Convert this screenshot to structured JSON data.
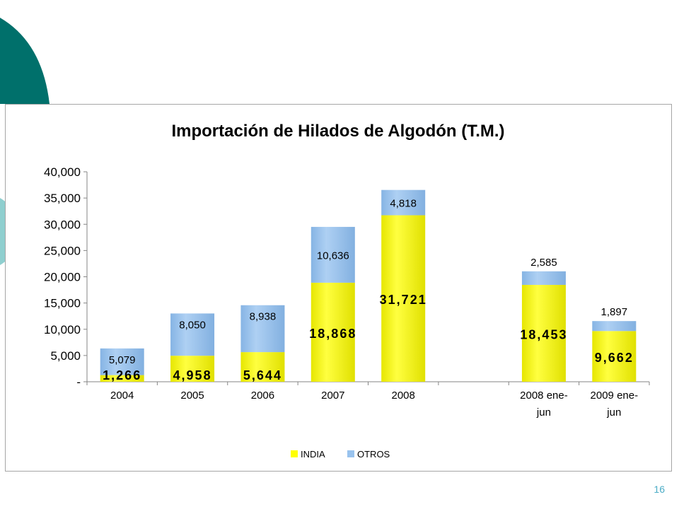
{
  "slide": {
    "page_number": "16",
    "colors": {
      "decor_dark": "#00706b",
      "decor_light": "#8fcfcf",
      "page_number": "#4bacc6"
    }
  },
  "chart_data": {
    "type": "bar",
    "stacked": true,
    "title": "Importación de Hilados de Algodón (T.M.)",
    "xlabel": "",
    "ylabel": "",
    "ylim": [
      0,
      40000
    ],
    "yticks": [
      "-",
      "5,000",
      "10,000",
      "15,000",
      "20,000",
      "25,000",
      "30,000",
      "35,000",
      "40,000"
    ],
    "grid": false,
    "legend_position": "bottom",
    "categories": [
      [
        "2004"
      ],
      [
        "2005"
      ],
      [
        "2006"
      ],
      [
        "2007"
      ],
      [
        "2008"
      ],
      [
        ""
      ],
      [
        "2008 ene-",
        "jun"
      ],
      [
        "2009 ene-",
        "jun"
      ]
    ],
    "series": [
      {
        "name": "INDIA",
        "color": "#ffff00",
        "values": [
          1266,
          4958,
          5644,
          18868,
          31721,
          null,
          18453,
          9662
        ],
        "labels": [
          "1,266",
          "4,958",
          "5,644",
          "18,868",
          "31,721",
          "",
          "18,453",
          "9,662"
        ]
      },
      {
        "name": "OTROS",
        "color": "#99c3ee",
        "values": [
          5079,
          8050,
          8938,
          10636,
          4818,
          null,
          2585,
          1897
        ],
        "labels": [
          "5,079",
          "8,050",
          "8,938",
          "10,636",
          "4,818",
          "",
          "2,585",
          "1,897"
        ]
      }
    ]
  }
}
